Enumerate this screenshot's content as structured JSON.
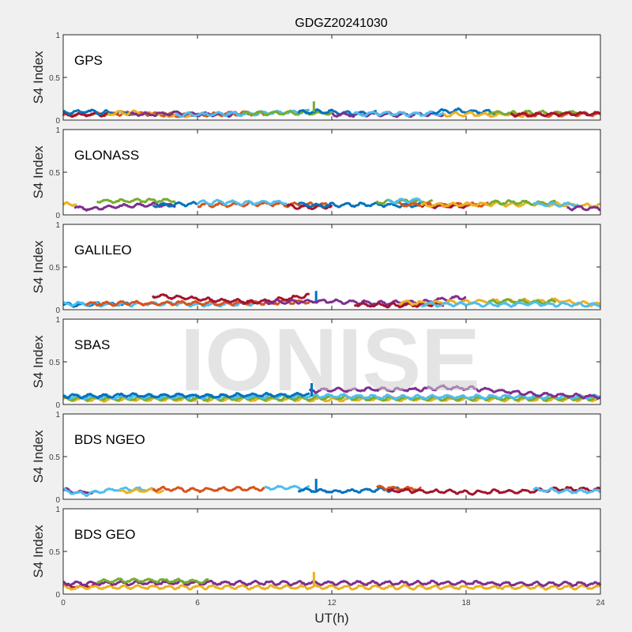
{
  "chart_data": {
    "type": "scatter",
    "title": "GDGZ20241030",
    "xlabel": "UT(h)",
    "ylabel": "S4 Index",
    "xlim": [
      0,
      24
    ],
    "ylim": [
      0,
      1
    ],
    "xticks": [
      "0",
      "6",
      "12",
      "18",
      "24"
    ],
    "yticks": [
      "0",
      "0.5",
      "1"
    ],
    "watermark": "IONISE",
    "colors": {
      "blue": "#0072BD",
      "orange": "#D95319",
      "yellow": "#EDB120",
      "purple": "#7E2F8E",
      "green": "#77AC30",
      "cyan": "#4DBEEE",
      "red": "#A2142F"
    },
    "panels": [
      {
        "label": "GPS",
        "series": [
          {
            "c": "orange",
            "t": [
              0,
              9
            ],
            "v": [
              0.06,
              0.07,
              0.07,
              0.08,
              0.07,
              0.06,
              0.06,
              0.07,
              0.08,
              0.07
            ]
          },
          {
            "c": "red",
            "t": [
              0,
              2
            ],
            "v": [
              0.06,
              0.06,
              0.07
            ]
          },
          {
            "c": "blue",
            "t": [
              0,
              3
            ],
            "v": [
              0.09,
              0.1,
              0.09,
              0.08
            ]
          },
          {
            "c": "yellow",
            "t": [
              2,
              6
            ],
            "v": [
              0.08,
              0.09,
              0.07,
              0.05,
              0.05
            ]
          },
          {
            "c": "purple",
            "t": [
              3,
              8
            ],
            "v": [
              0.07,
              0.07,
              0.08,
              0.07,
              0.06,
              0.07
            ]
          },
          {
            "c": "cyan",
            "t": [
              5,
              11
            ],
            "v": [
              0.07,
              0.06,
              0.08,
              0.07,
              0.08,
              0.09,
              0.1
            ]
          },
          {
            "c": "green",
            "t": [
              8,
              12
            ],
            "v": [
              0.08,
              0.08,
              0.09,
              0.08,
              0.08
            ]
          },
          {
            "c": "blue",
            "t": [
              10.5,
              14
            ],
            "v": [
              0.09,
              0.1,
              0.08,
              0.08
            ]
          },
          {
            "c": "purple",
            "t": [
              12,
              17
            ],
            "v": [
              0.07,
              0.06,
              0.07,
              0.06,
              0.07,
              0.06
            ]
          },
          {
            "c": "cyan",
            "t": [
              13,
              17
            ],
            "v": [
              0.07,
              0.08,
              0.07,
              0.07,
              0.08
            ]
          },
          {
            "c": "blue",
            "t": [
              16.5,
              19.5
            ],
            "v": [
              0.1,
              0.11,
              0.1,
              0.09
            ]
          },
          {
            "c": "yellow",
            "t": [
              17,
              21
            ],
            "v": [
              0.06,
              0.07,
              0.06,
              0.07,
              0.06
            ]
          },
          {
            "c": "green",
            "t": [
              19,
              23
            ],
            "v": [
              0.09,
              0.08,
              0.09,
              0.08,
              0.09
            ]
          },
          {
            "c": "orange",
            "t": [
              20,
              24
            ],
            "v": [
              0.07,
              0.06,
              0.06,
              0.07,
              0.07
            ]
          },
          {
            "c": "red",
            "t": [
              20,
              24
            ],
            "v": [
              0.07,
              0.06,
              0.07,
              0.07,
              0.08
            ]
          }
        ],
        "spikes": [
          {
            "c": "green",
            "t": 11.2,
            "v": 0.22
          }
        ]
      },
      {
        "label": "GLONASS",
        "series": [
          {
            "c": "yellow",
            "t": [
              0,
              0.6
            ],
            "v": [
              0.12,
              0.13
            ]
          },
          {
            "c": "purple",
            "t": [
              0.5,
              5
            ],
            "v": [
              0.08,
              0.07,
              0.1,
              0.11,
              0.12,
              0.11
            ]
          },
          {
            "c": "green",
            "t": [
              1.5,
              5
            ],
            "v": [
              0.16,
              0.16,
              0.17,
              0.17
            ]
          },
          {
            "c": "blue",
            "t": [
              4,
              6
            ],
            "v": [
              0.11,
              0.12,
              0.13
            ]
          },
          {
            "c": "orange",
            "t": [
              6,
              12
            ],
            "v": [
              0.11,
              0.12,
              0.12,
              0.13,
              0.12,
              0.12,
              0.11
            ]
          },
          {
            "c": "cyan",
            "t": [
              6,
              10
            ],
            "v": [
              0.14,
              0.15,
              0.14,
              0.15,
              0.15
            ]
          },
          {
            "c": "red",
            "t": [
              10,
              12
            ],
            "v": [
              0.1,
              0.09,
              0.1
            ]
          },
          {
            "c": "blue",
            "t": [
              10.5,
              16
            ],
            "v": [
              0.12,
              0.11,
              0.12,
              0.12,
              0.11,
              0.12
            ]
          },
          {
            "c": "green",
            "t": [
              14,
              16.5
            ],
            "v": [
              0.15,
              0.16,
              0.15
            ]
          },
          {
            "c": "cyan",
            "t": [
              14.5,
              16
            ],
            "v": [
              0.16,
              0.17
            ]
          },
          {
            "c": "orange",
            "t": [
              15,
              19
            ],
            "v": [
              0.12,
              0.12,
              0.11,
              0.12,
              0.12
            ]
          },
          {
            "c": "red",
            "t": [
              16,
              18
            ],
            "v": [
              0.1,
              0.1,
              0.1
            ]
          },
          {
            "c": "yellow",
            "t": [
              16,
              24
            ],
            "v": [
              0.11,
              0.12,
              0.12,
              0.13,
              0.12,
              0.13,
              0.12,
              0.11,
              0.11
            ]
          },
          {
            "c": "green",
            "t": [
              19,
              22
            ],
            "v": [
              0.14,
              0.15,
              0.14,
              0.14
            ]
          },
          {
            "c": "cyan",
            "t": [
              21,
              23
            ],
            "v": [
              0.13,
              0.12,
              0.12
            ]
          },
          {
            "c": "purple",
            "t": [
              22.5,
              24
            ],
            "v": [
              0.08,
              0.08
            ]
          }
        ],
        "spikes": []
      },
      {
        "label": "GALILEO",
        "series": [
          {
            "c": "blue",
            "t": [
              0,
              3
            ],
            "v": [
              0.06,
              0.06,
              0.07,
              0.06
            ]
          },
          {
            "c": "cyan",
            "t": [
              0,
              9
            ],
            "v": [
              0.07,
              0.07,
              0.06,
              0.06,
              0.07,
              0.07,
              0.06,
              0.06,
              0.07,
              0.07
            ]
          },
          {
            "c": "orange",
            "t": [
              1,
              11
            ],
            "v": [
              0.07,
              0.07,
              0.08,
              0.07,
              0.08,
              0.08,
              0.07,
              0.08,
              0.08,
              0.09,
              0.09
            ]
          },
          {
            "c": "red",
            "t": [
              4,
              8.5
            ],
            "v": [
              0.16,
              0.15,
              0.13,
              0.11,
              0.1,
              0.09
            ]
          },
          {
            "c": "red",
            "t": [
              8,
              11
            ],
            "v": [
              0.08,
              0.1,
              0.13,
              0.17
            ]
          },
          {
            "c": "purple",
            "t": [
              9,
              18
            ],
            "v": [
              0.09,
              0.09,
              0.1,
              0.1,
              0.09,
              0.08,
              0.08,
              0.09,
              0.12,
              0.15
            ]
          },
          {
            "c": "red",
            "t": [
              13,
              17
            ],
            "v": [
              0.06,
              0.05,
              0.05,
              0.06,
              0.06
            ]
          },
          {
            "c": "yellow",
            "t": [
              15,
              24
            ],
            "v": [
              0.08,
              0.08,
              0.09,
              0.09,
              0.1,
              0.1,
              0.1,
              0.11,
              0.08,
              0.06
            ]
          },
          {
            "c": "green",
            "t": [
              19,
              22
            ],
            "v": [
              0.09,
              0.1,
              0.09,
              0.09
            ]
          },
          {
            "c": "cyan",
            "t": [
              16,
              24
            ],
            "v": [
              0.06,
              0.06,
              0.07,
              0.06,
              0.06,
              0.07,
              0.06,
              0.06,
              0.05
            ]
          }
        ],
        "spikes": [
          {
            "c": "blue",
            "t": 11.3,
            "v": 0.22
          }
        ]
      },
      {
        "label": "SBAS",
        "series": [
          {
            "c": "yellow",
            "t": [
              0,
              24
            ],
            "v": [
              0.06,
              0.06,
              0.06,
              0.06,
              0.06,
              0.06,
              0.06,
              0.06,
              0.06,
              0.06,
              0.06,
              0.06,
              0.06
            ]
          },
          {
            "c": "green",
            "t": [
              0,
              24
            ],
            "v": [
              0.07,
              0.07,
              0.07,
              0.07,
              0.07,
              0.07,
              0.08,
              0.07,
              0.07,
              0.07,
              0.07,
              0.07,
              0.07
            ]
          },
          {
            "c": "cyan",
            "t": [
              0,
              24
            ],
            "v": [
              0.09,
              0.09,
              0.09,
              0.09,
              0.09,
              0.1,
              0.1,
              0.09,
              0.09,
              0.09,
              0.09,
              0.09,
              0.09
            ]
          },
          {
            "c": "blue",
            "t": [
              0,
              11
            ],
            "v": [
              0.1,
              0.1,
              0.1,
              0.11,
              0.1,
              0.11,
              0.1,
              0.1,
              0.11,
              0.11,
              0.11,
              0.12
            ]
          },
          {
            "c": "purple",
            "t": [
              11,
              24
            ],
            "v": [
              0.16,
              0.17,
              0.17,
              0.18,
              0.17,
              0.18,
              0.2,
              0.19,
              0.17,
              0.15,
              0.12,
              0.11,
              0.1,
              0.09
            ]
          }
        ],
        "spikes": [
          {
            "c": "blue",
            "t": 11.1,
            "v": 0.25
          }
        ]
      },
      {
        "label": "BDS NGEO",
        "series": [
          {
            "c": "purple",
            "t": [
              0,
              1.5
            ],
            "v": [
              0.11,
              0.08,
              0.09
            ]
          },
          {
            "c": "cyan",
            "t": [
              0,
              4
            ],
            "v": [
              0.1,
              0.06,
              0.11,
              0.12,
              0.11
            ]
          },
          {
            "c": "yellow",
            "t": [
              2.5,
              4.5
            ],
            "v": [
              0.09,
              0.1,
              0.1
            ]
          },
          {
            "c": "orange",
            "t": [
              4,
              9
            ],
            "v": [
              0.12,
              0.12,
              0.11,
              0.12,
              0.12,
              0.13
            ]
          },
          {
            "c": "cyan",
            "t": [
              9,
              11
            ],
            "v": [
              0.13,
              0.14,
              0.13
            ]
          },
          {
            "c": "blue",
            "t": [
              10.5,
              15
            ],
            "v": [
              0.11,
              0.1,
              0.09,
              0.1,
              0.11,
              0.12
            ]
          },
          {
            "c": "orange",
            "t": [
              14,
              16
            ],
            "v": [
              0.14,
              0.13,
              0.12
            ]
          },
          {
            "c": "red",
            "t": [
              14.5,
              24
            ],
            "v": [
              0.1,
              0.1,
              0.09,
              0.09,
              0.08,
              0.09,
              0.09,
              0.1,
              0.12,
              0.12,
              0.11
            ]
          },
          {
            "c": "cyan",
            "t": [
              21,
              24
            ],
            "v": [
              0.11,
              0.1,
              0.09,
              0.09
            ]
          }
        ],
        "spikes": [
          {
            "c": "blue",
            "t": 11.3,
            "v": 0.24
          }
        ]
      },
      {
        "label": "BDS GEO",
        "series": [
          {
            "c": "red",
            "t": [
              0,
              1.5
            ],
            "v": [
              0.1,
              0.09,
              0.1
            ]
          },
          {
            "c": "yellow",
            "t": [
              0,
              24
            ],
            "v": [
              0.07,
              0.08,
              0.08,
              0.08,
              0.08,
              0.08,
              0.08,
              0.08,
              0.08,
              0.08,
              0.08,
              0.08,
              0.08
            ]
          },
          {
            "c": "purple",
            "t": [
              0,
              24
            ],
            "v": [
              0.12,
              0.13,
              0.13,
              0.13,
              0.13,
              0.13,
              0.13,
              0.13,
              0.13,
              0.13,
              0.12,
              0.12,
              0.12
            ]
          },
          {
            "c": "green",
            "t": [
              1.5,
              6.5
            ],
            "v": [
              0.15,
              0.16,
              0.16,
              0.16,
              0.15,
              0.15
            ]
          }
        ],
        "spikes": [
          {
            "c": "yellow",
            "t": 11.2,
            "v": 0.26
          }
        ]
      }
    ]
  }
}
